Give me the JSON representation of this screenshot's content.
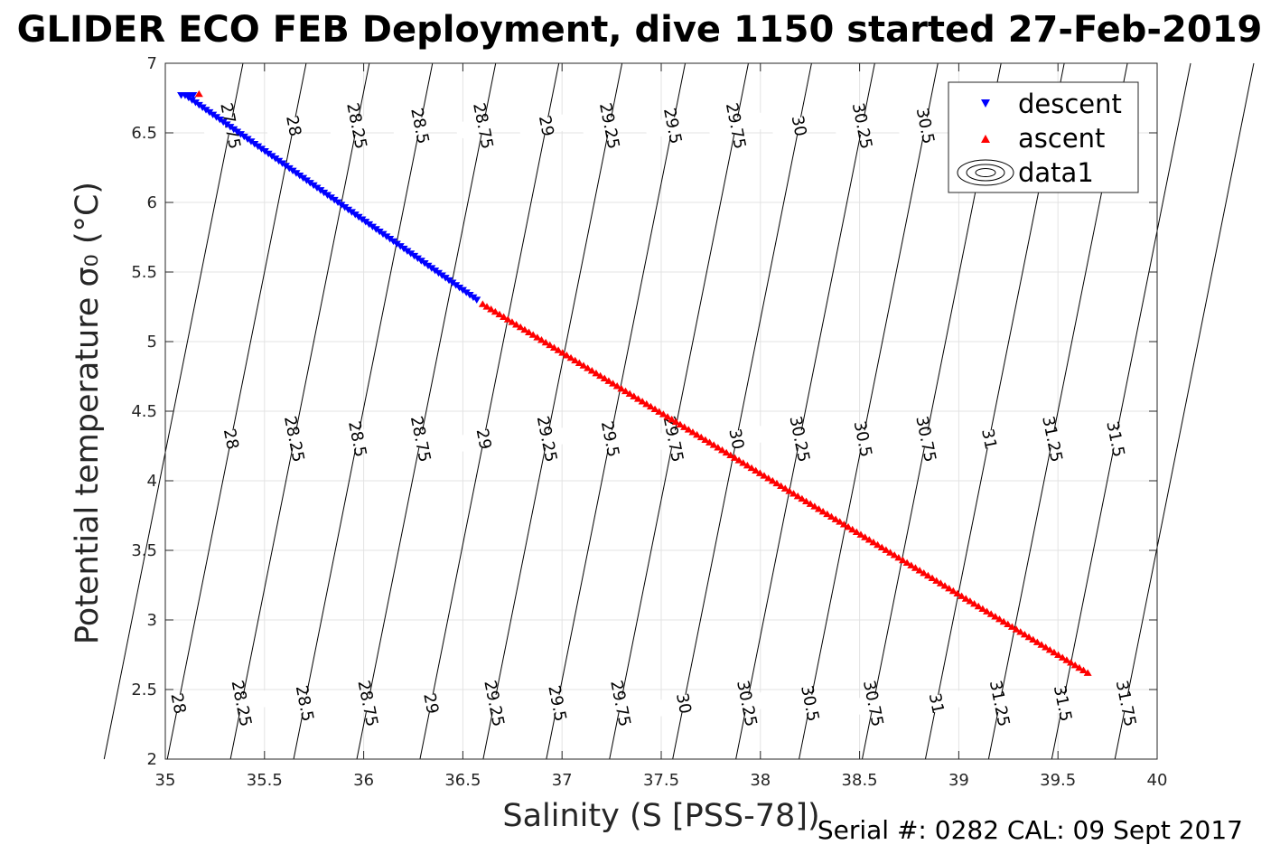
{
  "title": "GLIDER ECO FEB Deployment, dive 1150 started 27-Feb-2019",
  "footer": "Serial #: 0282  CAL: 09 Sept 2017",
  "chart_data": {
    "type": "scatter",
    "xlabel": "Salinity (S [PSS-78])",
    "ylabel": "Potential temperature σ₀ (°C)",
    "xlim": [
      35,
      40
    ],
    "ylim": [
      2,
      7
    ],
    "xticks": [
      35,
      35.5,
      36,
      36.5,
      37,
      37.5,
      38,
      38.5,
      39,
      39.5,
      40
    ],
    "yticks": [
      2,
      2.5,
      3,
      3.5,
      4,
      4.5,
      5,
      5.5,
      6,
      6.5,
      7
    ],
    "grid": true,
    "legend_position": "top-right",
    "series": [
      {
        "name": "descent",
        "marker": "triangle-down",
        "color": "#0000ff",
        "x_start": 35.1,
        "x_end": 36.57,
        "y_start": 6.77,
        "y_end": 5.3,
        "points": 85,
        "cluster_x": [
          35.08,
          35.1,
          35.12,
          35.14
        ],
        "cluster_y": 6.77
      },
      {
        "name": "ascent",
        "marker": "triangle-up",
        "color": "#ff0000",
        "x_start": 36.6,
        "x_end": 39.65,
        "y_start": 5.27,
        "y_end": 2.62,
        "points": 145,
        "cluster_x": [
          35.17
        ],
        "cluster_y": 6.78
      }
    ],
    "contours": {
      "name": "data1",
      "levels": [
        27.75,
        28,
        28.25,
        28.5,
        28.75,
        29,
        29.25,
        29.5,
        29.75,
        30,
        30.25,
        30.5,
        30.75,
        31,
        31.25,
        31.5,
        31.75
      ],
      "labels_top": [
        "27.75",
        "28",
        "28.25",
        "28.5",
        "28.75",
        "29",
        "29.25",
        "29.5",
        "29.75",
        "30",
        "30.25",
        "30.5"
      ],
      "labels_mid": [
        "28",
        "28.25",
        "28.5",
        "28.75",
        "29",
        "29.25",
        "29.5",
        "29.75",
        "30",
        "30.25",
        "30.5",
        "30.75",
        "31",
        "31.25",
        "31.5"
      ],
      "labels_bottom": [
        "28",
        "28.25",
        "28.5",
        "28.75",
        "29",
        "29.25",
        "29.5",
        "29.75",
        "30",
        "30.25",
        "30.5",
        "30.75",
        "31",
        "31.25",
        "31.5",
        "31.75"
      ]
    }
  }
}
